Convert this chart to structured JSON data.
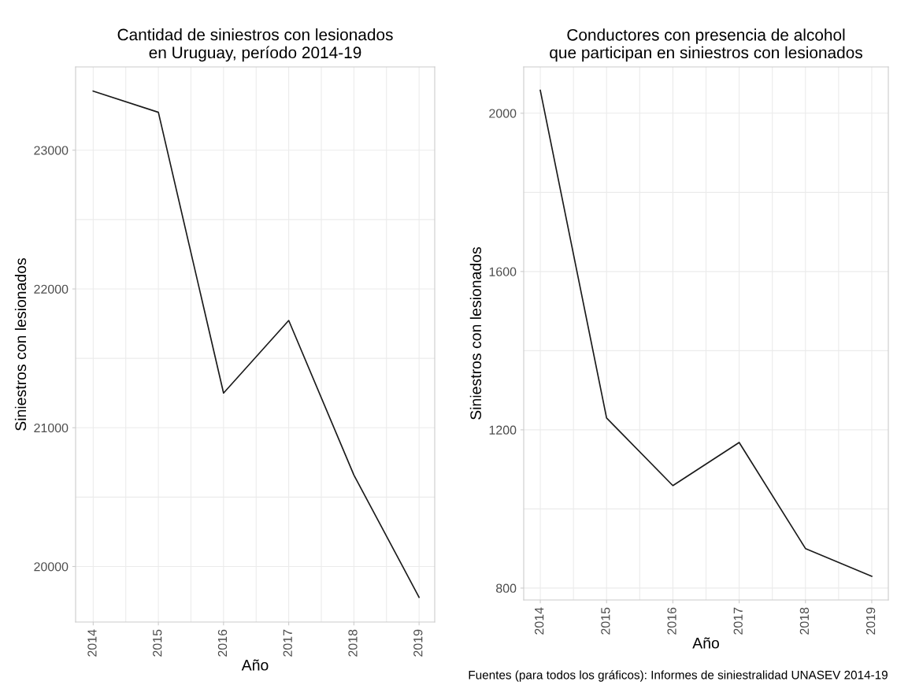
{
  "chart_data": [
    {
      "type": "line",
      "title": "Cantidad de siniestros con lesionados\nen Uruguay, período 2014-19",
      "xlabel": "Año",
      "ylabel": "Siniestros con lesionados",
      "x": [
        2014,
        2015,
        2016,
        2017,
        2018,
        2019
      ],
      "series": [
        {
          "color": "#1a1a1a",
          "values": [
            23426,
            23273,
            21250,
            21773,
            20659,
            19778
          ]
        }
      ],
      "xlim": [
        2013.73,
        2019.24
      ],
      "xticks": [
        2014,
        2015,
        2016,
        2017,
        2018,
        2019
      ],
      "ylim": [
        19600,
        23600
      ],
      "yticks": [
        20000,
        21000,
        22000,
        23000
      ],
      "grid": true
    },
    {
      "type": "line",
      "title": "Conductores con presencia de alcohol\nque participan en siniestros con lesionados",
      "xlabel": "Año",
      "ylabel": "Siniestros con lesionados",
      "x": [
        2014,
        2015,
        2016,
        2017,
        2018,
        2019
      ],
      "series": [
        {
          "color": "#1a1a1a",
          "values": [
            2058,
            1230,
            1059,
            1168,
            900,
            830
          ]
        }
      ],
      "xlim": [
        2013.75,
        2019.25
      ],
      "xticks": [
        2014,
        2015,
        2016,
        2017,
        2018,
        2019
      ],
      "ylim": [
        770,
        2117
      ],
      "yticks": [
        800,
        1200,
        1600,
        2000
      ],
      "grid": true,
      "annotations": [
        "Fuentes (para todos los gráficos): Informes de siniestralidad UNASEV 2014-19"
      ]
    }
  ]
}
